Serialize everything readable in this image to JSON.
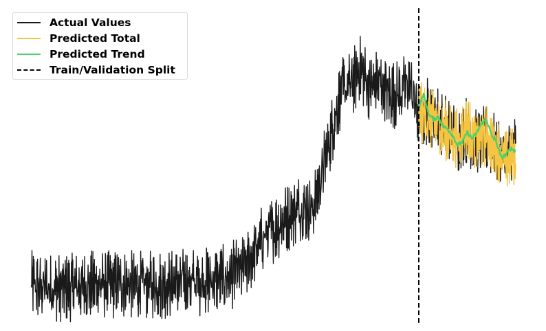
{
  "chart_data": {
    "type": "line",
    "title": "",
    "xlabel": "",
    "ylabel": "",
    "axes_visible": false,
    "grid": false,
    "legend_position": "top-left",
    "x_range": [
      0,
      1000
    ],
    "y_range": [
      0,
      100
    ],
    "split_x": 800,
    "series": [
      {
        "name": "Actual Values",
        "color": "#1a1a1a",
        "x": [
          0,
          40,
          80,
          120,
          160,
          200,
          240,
          280,
          320,
          360,
          400,
          440,
          480,
          520,
          560,
          580,
          600,
          620,
          640,
          660,
          680,
          700,
          720,
          740,
          760,
          780,
          800,
          820,
          840,
          860,
          880,
          900,
          920,
          940,
          960,
          980,
          1000
        ],
        "values": [
          12,
          11,
          11,
          12,
          12,
          12,
          12,
          12,
          13,
          13,
          14,
          17,
          27,
          32,
          37,
          35,
          47,
          60,
          73,
          75,
          80,
          74,
          76,
          72,
          72,
          76,
          65,
          67,
          64,
          60,
          58,
          61,
          56,
          58,
          55,
          52,
          55
        ],
        "band": [
          16,
          16,
          16,
          16,
          16,
          16,
          16,
          16,
          16,
          16,
          16,
          16,
          16,
          16,
          16,
          16,
          16,
          16,
          16,
          16,
          16,
          16,
          16,
          16,
          16,
          16,
          16,
          16,
          16,
          16,
          16,
          16,
          16,
          16,
          16,
          16,
          16
        ]
      },
      {
        "name": "Predicted Total",
        "color": "#f5c542",
        "x": [
          800,
          820,
          840,
          860,
          880,
          900,
          920,
          940,
          960,
          980,
          1000
        ],
        "values": [
          67,
          64,
          63,
          60,
          58,
          62,
          57,
          59,
          55,
          51,
          53
        ],
        "band": [
          14,
          14,
          14,
          14,
          14,
          14,
          14,
          14,
          14,
          14,
          14
        ]
      },
      {
        "name": "Predicted Trend",
        "color": "#4cd16a",
        "x": [
          800,
          810,
          820,
          830,
          840,
          850,
          860,
          870,
          880,
          890,
          900,
          910,
          920,
          930,
          940,
          950,
          960,
          970,
          980,
          990,
          1000
        ],
        "values": [
          68,
          72,
          66,
          64,
          65,
          62,
          61,
          59,
          56,
          57,
          60,
          58,
          60,
          63,
          64,
          59,
          57,
          52,
          53,
          55,
          54
        ],
        "band": [
          0,
          0,
          0,
          0,
          0,
          0,
          0,
          0,
          0,
          0,
          0,
          0,
          0,
          0,
          0,
          0,
          0,
          0,
          0,
          0,
          0
        ]
      }
    ],
    "legend": [
      {
        "label": "Actual Values",
        "color": "#1a1a1a",
        "style": "solid"
      },
      {
        "label": "Predicted Total",
        "color": "#f5c542",
        "style": "solid"
      },
      {
        "label": "Predicted Trend",
        "color": "#4cd16a",
        "style": "solid"
      },
      {
        "label": "Train/Validation Split",
        "color": "#000000",
        "style": "dashed"
      }
    ]
  }
}
